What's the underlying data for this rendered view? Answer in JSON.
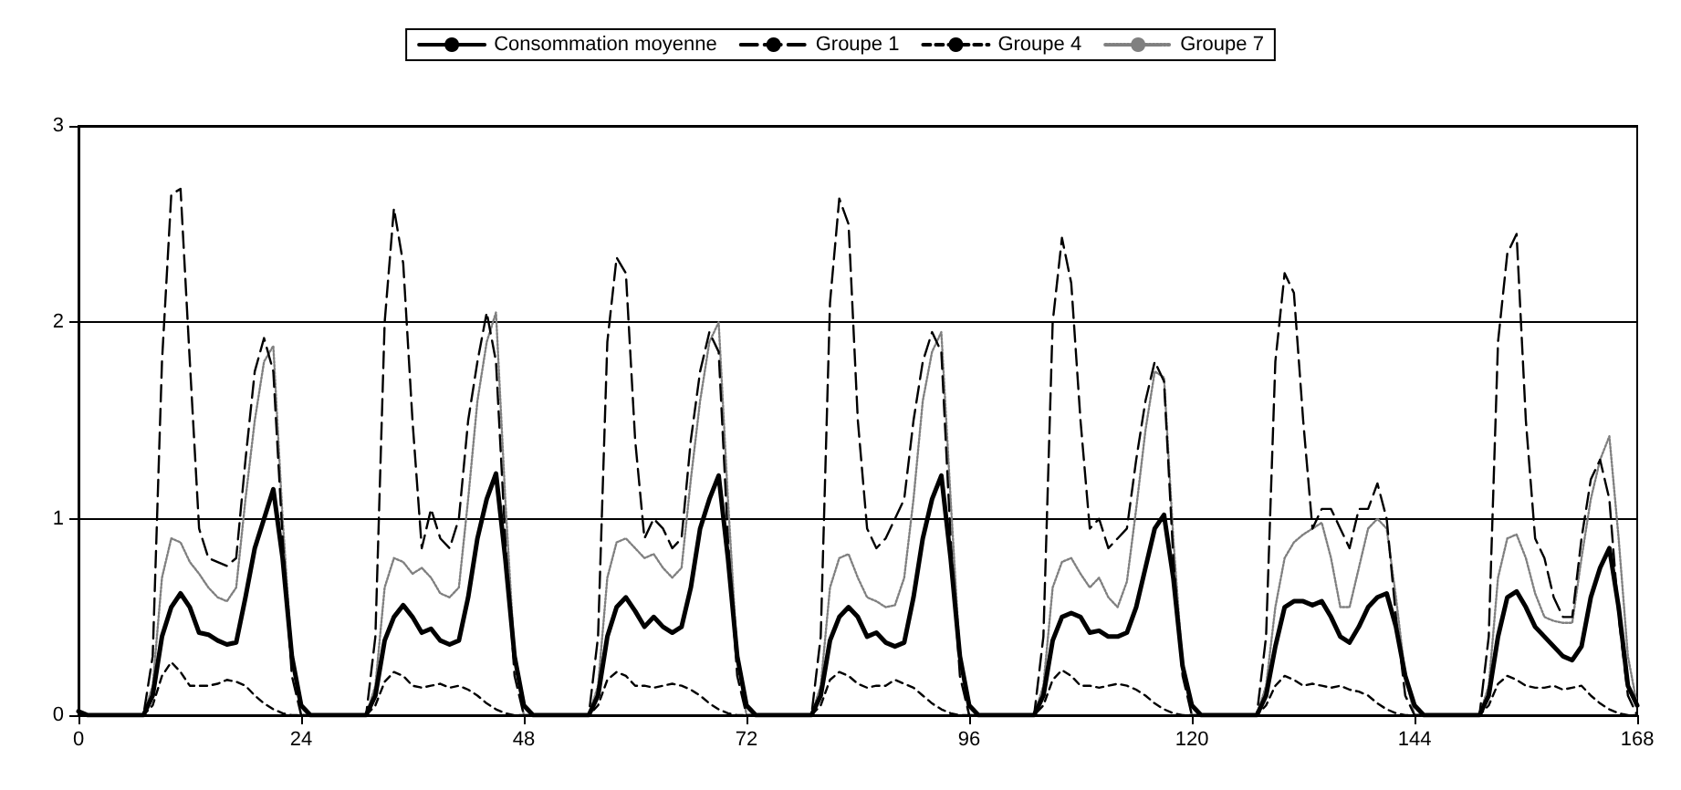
{
  "chart_data": {
    "type": "line",
    "legend": "top",
    "grid": "y",
    "marker": "none",
    "xlim": [
      0,
      168
    ],
    "xticks": [
      0,
      24,
      48,
      72,
      96,
      120,
      144,
      168
    ],
    "ylim": [
      0,
      3
    ],
    "yticks": [
      0,
      1,
      2,
      3
    ],
    "x": [
      0,
      1,
      2,
      3,
      4,
      5,
      6,
      7,
      8,
      9,
      10,
      11,
      12,
      13,
      14,
      15,
      16,
      17,
      18,
      19,
      20,
      21,
      22,
      23,
      24,
      25,
      26,
      27,
      28,
      29,
      30,
      31,
      32,
      33,
      34,
      35,
      36,
      37,
      38,
      39,
      40,
      41,
      42,
      43,
      44,
      45,
      46,
      47,
      48,
      49,
      50,
      51,
      52,
      53,
      54,
      55,
      56,
      57,
      58,
      59,
      60,
      61,
      62,
      63,
      64,
      65,
      66,
      67,
      68,
      69,
      70,
      71,
      72,
      73,
      74,
      75,
      76,
      77,
      78,
      79,
      80,
      81,
      82,
      83,
      84,
      85,
      86,
      87,
      88,
      89,
      90,
      91,
      92,
      93,
      94,
      95,
      96,
      97,
      98,
      99,
      100,
      101,
      102,
      103,
      104,
      105,
      106,
      107,
      108,
      109,
      110,
      111,
      112,
      113,
      114,
      115,
      116,
      117,
      118,
      119,
      120,
      121,
      122,
      123,
      124,
      125,
      126,
      127,
      128,
      129,
      130,
      131,
      132,
      133,
      134,
      135,
      136,
      137,
      138,
      139,
      140,
      141,
      142,
      143,
      144,
      145,
      146,
      147,
      148,
      149,
      150,
      151,
      152,
      153,
      154,
      155,
      156,
      157,
      158,
      159,
      160,
      161,
      162,
      163,
      164,
      165,
      166,
      167,
      168
    ],
    "series": [
      {
        "name": "Consommation moyenne",
        "color": "#000000",
        "line_style": "solid",
        "values": [
          0.02,
          0,
          0,
          0,
          0,
          0,
          0,
          0,
          0.1,
          0.4,
          0.55,
          0.62,
          0.55,
          0.42,
          0.41,
          0.38,
          0.36,
          0.37,
          0.6,
          0.85,
          1.0,
          1.15,
          0.8,
          0.3,
          0.05,
          0,
          0,
          0,
          0,
          0,
          0,
          0,
          0.1,
          0.38,
          0.5,
          0.56,
          0.5,
          0.42,
          0.44,
          0.38,
          0.36,
          0.38,
          0.6,
          0.9,
          1.1,
          1.23,
          0.8,
          0.3,
          0.05,
          0,
          0,
          0,
          0,
          0,
          0,
          0,
          0.1,
          0.4,
          0.55,
          0.6,
          0.53,
          0.45,
          0.5,
          0.45,
          0.42,
          0.45,
          0.65,
          0.95,
          1.1,
          1.22,
          0.8,
          0.3,
          0.05,
          0,
          0,
          0,
          0,
          0,
          0,
          0,
          0.1,
          0.38,
          0.5,
          0.55,
          0.5,
          0.4,
          0.42,
          0.37,
          0.35,
          0.37,
          0.6,
          0.9,
          1.1,
          1.22,
          0.8,
          0.3,
          0.05,
          0,
          0,
          0,
          0,
          0,
          0,
          0,
          0.1,
          0.38,
          0.5,
          0.52,
          0.5,
          0.42,
          0.43,
          0.4,
          0.4,
          0.42,
          0.55,
          0.75,
          0.95,
          1.02,
          0.7,
          0.25,
          0.05,
          0,
          0,
          0,
          0,
          0,
          0,
          0,
          0.1,
          0.35,
          0.55,
          0.58,
          0.58,
          0.56,
          0.58,
          0.5,
          0.4,
          0.37,
          0.45,
          0.55,
          0.6,
          0.62,
          0.45,
          0.2,
          0.05,
          0,
          0,
          0,
          0,
          0,
          0,
          0,
          0.1,
          0.4,
          0.6,
          0.63,
          0.55,
          0.45,
          0.4,
          0.35,
          0.3,
          0.28,
          0.35,
          0.6,
          0.75,
          0.85,
          0.55,
          0.15,
          0.05
        ]
      },
      {
        "name": "Groupe 1",
        "color": "#000000",
        "line_style": "dashed",
        "values": [
          0,
          0,
          0,
          0,
          0,
          0,
          0,
          0,
          0.3,
          1.8,
          2.65,
          2.68,
          1.8,
          0.95,
          0.8,
          0.78,
          0.76,
          0.8,
          1.3,
          1.75,
          1.92,
          1.75,
          0.9,
          0.2,
          0,
          0,
          0,
          0,
          0,
          0,
          0,
          0,
          0.4,
          2.0,
          2.58,
          2.3,
          1.5,
          0.85,
          1.05,
          0.9,
          0.85,
          1.0,
          1.5,
          1.8,
          2.05,
          1.8,
          0.9,
          0.2,
          0,
          0,
          0,
          0,
          0,
          0,
          0,
          0,
          0.4,
          1.9,
          2.33,
          2.25,
          1.4,
          0.9,
          1.0,
          0.95,
          0.85,
          0.9,
          1.4,
          1.75,
          1.95,
          1.85,
          0.9,
          0.2,
          0,
          0,
          0,
          0,
          0,
          0,
          0,
          0,
          0.4,
          2.1,
          2.63,
          2.5,
          1.5,
          0.95,
          0.85,
          0.9,
          1.0,
          1.1,
          1.5,
          1.8,
          1.95,
          1.85,
          0.9,
          0.2,
          0,
          0,
          0,
          0,
          0,
          0,
          0,
          0,
          0.4,
          2.0,
          2.43,
          2.2,
          1.5,
          0.95,
          1.0,
          0.85,
          0.9,
          0.95,
          1.3,
          1.6,
          1.8,
          1.7,
          0.8,
          0.2,
          0,
          0,
          0,
          0,
          0,
          0,
          0,
          0,
          0.4,
          1.8,
          2.25,
          2.15,
          1.5,
          0.95,
          1.05,
          1.05,
          0.95,
          0.85,
          1.05,
          1.05,
          1.18,
          1.0,
          0.5,
          0.1,
          0,
          0,
          0,
          0,
          0,
          0,
          0,
          0,
          0.4,
          1.9,
          2.35,
          2.45,
          1.5,
          0.9,
          0.8,
          0.6,
          0.5,
          0.5,
          0.9,
          1.2,
          1.3,
          1.1,
          0.5,
          0.1,
          0
        ]
      },
      {
        "name": "Groupe 4",
        "color": "#000000",
        "line_style": "dashed",
        "values": [
          0,
          0,
          0,
          0,
          0,
          0,
          0,
          0,
          0.05,
          0.2,
          0.27,
          0.22,
          0.15,
          0.15,
          0.15,
          0.16,
          0.18,
          0.17,
          0.15,
          0.1,
          0.06,
          0.03,
          0.01,
          0,
          0,
          0,
          0,
          0,
          0,
          0,
          0,
          0,
          0.05,
          0.17,
          0.22,
          0.2,
          0.15,
          0.14,
          0.15,
          0.16,
          0.14,
          0.15,
          0.13,
          0.1,
          0.06,
          0.03,
          0.01,
          0,
          0,
          0,
          0,
          0,
          0,
          0,
          0,
          0,
          0.05,
          0.18,
          0.22,
          0.2,
          0.15,
          0.15,
          0.14,
          0.15,
          0.16,
          0.15,
          0.13,
          0.1,
          0.06,
          0.03,
          0.01,
          0,
          0,
          0,
          0,
          0,
          0,
          0,
          0,
          0,
          0.05,
          0.18,
          0.22,
          0.2,
          0.16,
          0.14,
          0.15,
          0.15,
          0.18,
          0.16,
          0.14,
          0.1,
          0.06,
          0.03,
          0.01,
          0,
          0,
          0,
          0,
          0,
          0,
          0,
          0,
          0,
          0.05,
          0.18,
          0.23,
          0.2,
          0.15,
          0.15,
          0.14,
          0.15,
          0.16,
          0.15,
          0.13,
          0.1,
          0.06,
          0.03,
          0.01,
          0,
          0,
          0,
          0,
          0,
          0,
          0,
          0,
          0,
          0.05,
          0.15,
          0.2,
          0.18,
          0.15,
          0.16,
          0.15,
          0.14,
          0.15,
          0.13,
          0.12,
          0.1,
          0.06,
          0.03,
          0.01,
          0,
          0,
          0,
          0,
          0,
          0,
          0,
          0,
          0,
          0.05,
          0.16,
          0.2,
          0.18,
          0.15,
          0.14,
          0.14,
          0.15,
          0.13,
          0.14,
          0.15,
          0.1,
          0.06,
          0.03,
          0.01,
          0,
          0
        ]
      },
      {
        "name": "Groupe 7",
        "color": "#808080",
        "line_style": "dotted",
        "values": [
          0,
          0,
          0,
          0,
          0,
          0,
          0,
          0,
          0.15,
          0.7,
          0.9,
          0.88,
          0.78,
          0.72,
          0.65,
          0.6,
          0.58,
          0.65,
          1.1,
          1.5,
          1.8,
          1.88,
          1.0,
          0.3,
          0,
          0,
          0,
          0,
          0,
          0,
          0,
          0,
          0.15,
          0.65,
          0.8,
          0.78,
          0.72,
          0.75,
          0.7,
          0.62,
          0.6,
          0.65,
          1.1,
          1.6,
          1.9,
          2.05,
          1.1,
          0.3,
          0,
          0,
          0,
          0,
          0,
          0,
          0,
          0,
          0.15,
          0.7,
          0.88,
          0.9,
          0.85,
          0.8,
          0.82,
          0.75,
          0.7,
          0.75,
          1.2,
          1.6,
          1.9,
          2.0,
          1.1,
          0.3,
          0,
          0,
          0,
          0,
          0,
          0,
          0,
          0,
          0.15,
          0.65,
          0.8,
          0.82,
          0.7,
          0.6,
          0.58,
          0.55,
          0.56,
          0.7,
          1.1,
          1.6,
          1.85,
          1.95,
          1.1,
          0.3,
          0,
          0,
          0,
          0,
          0,
          0,
          0,
          0,
          0.15,
          0.65,
          0.78,
          0.8,
          0.72,
          0.65,
          0.7,
          0.6,
          0.55,
          0.68,
          1.05,
          1.45,
          1.75,
          1.72,
          0.9,
          0.25,
          0,
          0,
          0,
          0,
          0,
          0,
          0,
          0,
          0.15,
          0.55,
          0.8,
          0.88,
          0.92,
          0.95,
          0.98,
          0.8,
          0.55,
          0.55,
          0.75,
          0.95,
          1.0,
          0.95,
          0.6,
          0.2,
          0,
          0,
          0,
          0,
          0,
          0,
          0,
          0,
          0.15,
          0.7,
          0.9,
          0.92,
          0.8,
          0.62,
          0.5,
          0.48,
          0.47,
          0.47,
          0.8,
          1.1,
          1.3,
          1.42,
          0.9,
          0.3,
          0.05
        ]
      }
    ]
  }
}
